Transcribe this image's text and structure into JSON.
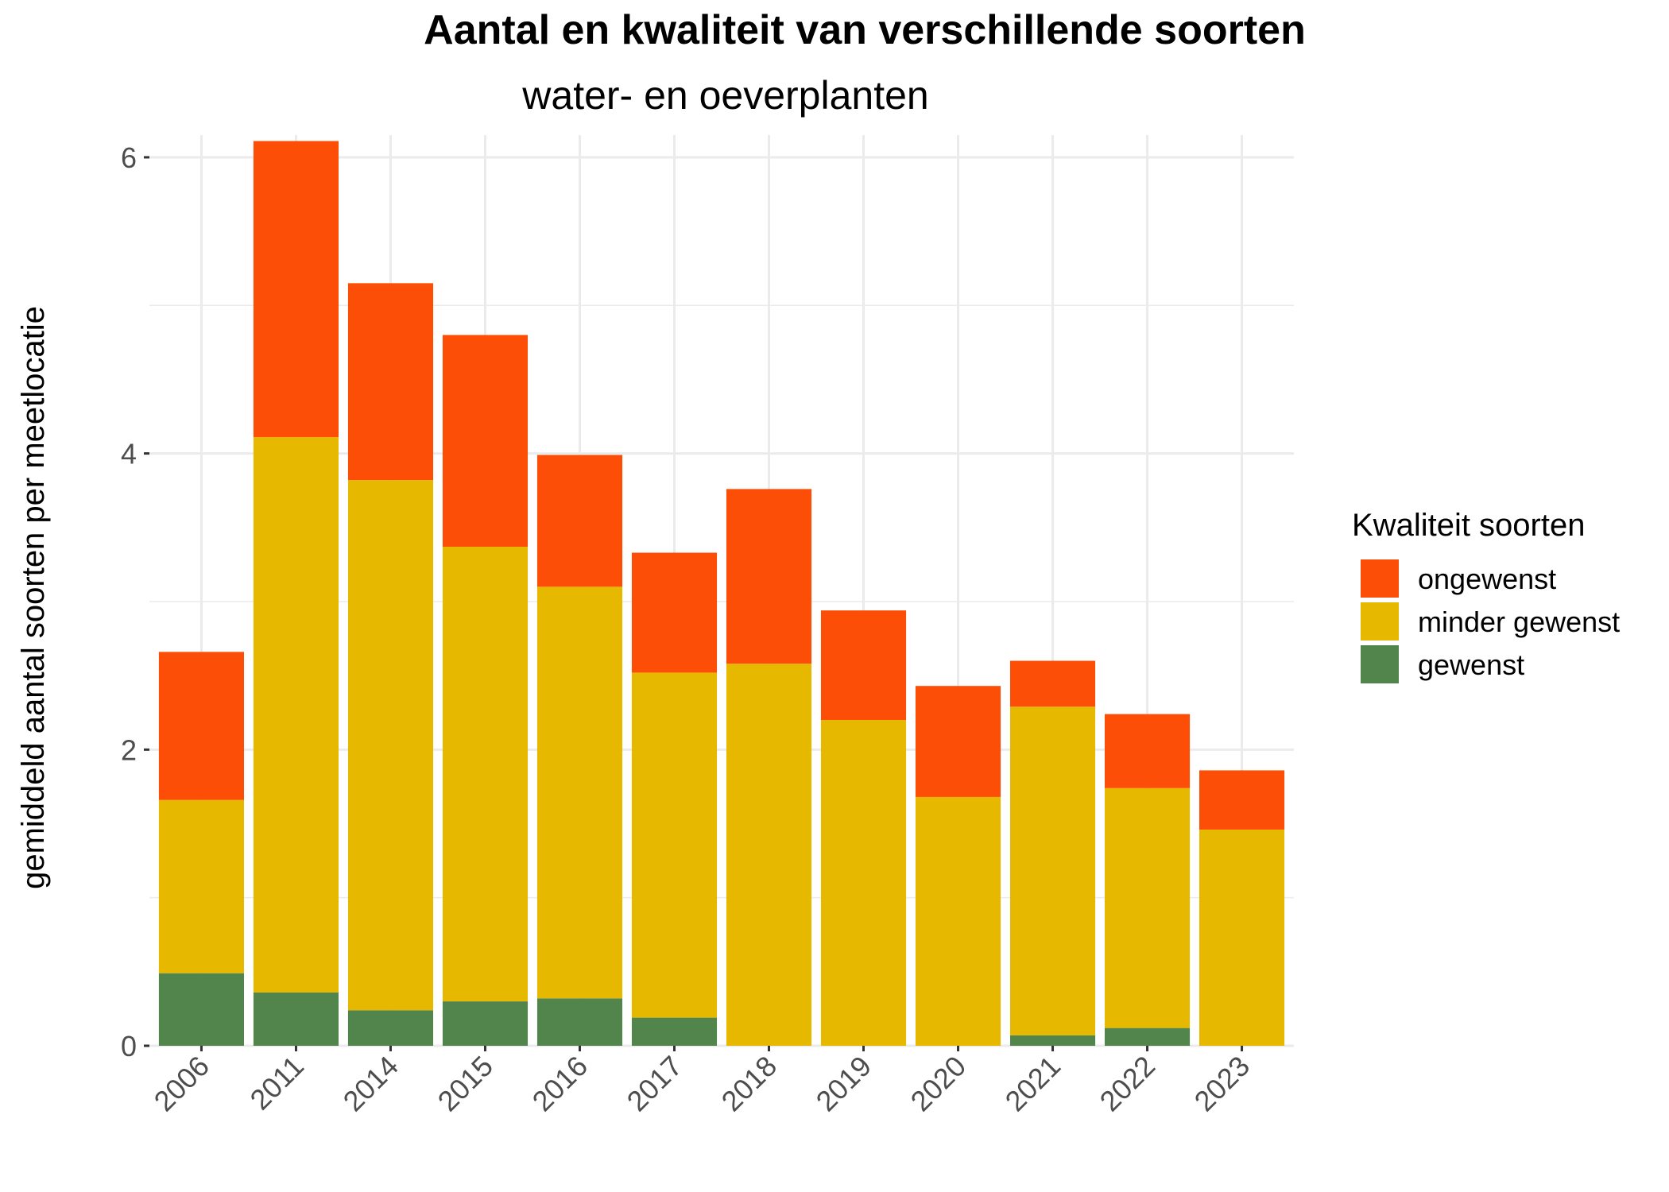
{
  "chart_data": {
    "type": "bar",
    "stacked": true,
    "title": "Aantal en kwaliteit van verschillende soorten",
    "subtitle": "water- en oeverplanten",
    "xlabel": "",
    "ylabel": "gemiddeld aantal soorten per meetlocatie",
    "ylim": [
      0,
      6.15
    ],
    "yticks": [
      "0",
      "2",
      "4",
      "6"
    ],
    "grid": true,
    "legend_title": "Kwaliteit soorten",
    "legend_position": "right",
    "categories": [
      "2006",
      "2011",
      "2014",
      "2015",
      "2016",
      "2017",
      "2018",
      "2019",
      "2020",
      "2021",
      "2022",
      "2023"
    ],
    "series": [
      {
        "name": "gewenst",
        "color": "#52854C",
        "values": [
          0.49,
          0.36,
          0.24,
          0.3,
          0.32,
          0.19,
          0.0,
          0.0,
          0.0,
          0.07,
          0.12,
          0.0
        ]
      },
      {
        "name": "minder gewenst",
        "color": "#E6B800",
        "values": [
          1.17,
          3.75,
          3.58,
          3.07,
          2.78,
          2.33,
          2.58,
          2.2,
          1.68,
          2.22,
          1.62,
          1.46
        ]
      },
      {
        "name": "ongewenst",
        "color": "#FC4E07",
        "values": [
          1.0,
          2.0,
          1.33,
          1.43,
          0.89,
          0.81,
          1.18,
          0.74,
          0.75,
          0.31,
          0.5,
          0.4
        ]
      }
    ],
    "legend_order": [
      "ongewenst",
      "minder gewenst",
      "gewenst"
    ]
  }
}
